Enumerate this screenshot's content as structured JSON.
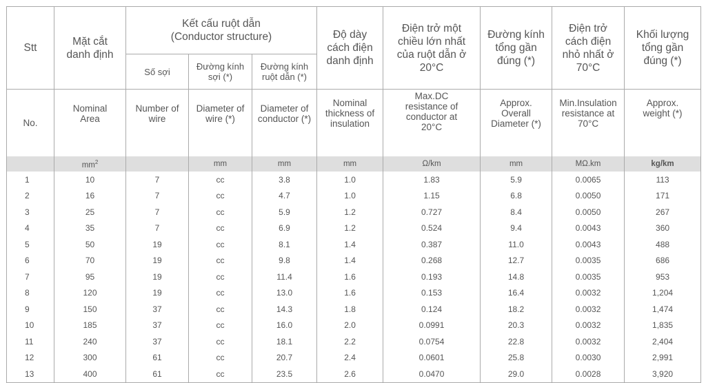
{
  "header_vi": {
    "stt": "Stt",
    "area": "Mặt cắt danh định",
    "structure": "Kết cấu ruột dẫn",
    "structure_en": "(Conductor structure)",
    "num_wire": "Số sợi",
    "dia_wire": "Đường kính sợi (*)",
    "dia_conductor": "Đường kính ruột dẫn (*)",
    "insulation": "Độ dày cách điện danh định",
    "dc_resistance": "Điện trở một chiều lớn nhất của ruột dẫn ở 20°C",
    "overall_dia": "Đường kính tổng gần đúng (*)",
    "insulation_res": "Điện trở cách điện nhỏ nhất ở 70°C",
    "weight": "Khối lượng tổng gần đúng (*)"
  },
  "header_en": [
    "No.",
    "Nominal Area",
    "Number of wire",
    "Diameter of wire (*)",
    "Diameter of conductor (*)",
    "Nominal thickness of insulation",
    "Max.DC resistance of conductor at 20°C",
    "Approx. Overall Diameter (*)",
    "Min.Insulation resistance at 70°C",
    "Approx. weight (*)"
  ],
  "units": [
    "",
    "mm",
    "",
    "mm",
    "mm",
    "mm",
    "Ω/km",
    "mm",
    "MΩ.km",
    "kg/km"
  ],
  "area_unit_sup": "2",
  "rows": [
    [
      "1",
      "10",
      "7",
      "cc",
      "3.8",
      "1.0",
      "1.83",
      "5.9",
      "0.0065",
      "113"
    ],
    [
      "2",
      "16",
      "7",
      "cc",
      "4.7",
      "1.0",
      "1.15",
      "6.8",
      "0.0050",
      "171"
    ],
    [
      "3",
      "25",
      "7",
      "cc",
      "5.9",
      "1.2",
      "0.727",
      "8.4",
      "0.0050",
      "267"
    ],
    [
      "4",
      "35",
      "7",
      "cc",
      "6.9",
      "1.2",
      "0.524",
      "9.4",
      "0.0043",
      "360"
    ],
    [
      "5",
      "50",
      "19",
      "cc",
      "8.1",
      "1.4",
      "0.387",
      "11.0",
      "0.0043",
      "488"
    ],
    [
      "6",
      "70",
      "19",
      "cc",
      "9.8",
      "1.4",
      "0.268",
      "12.7",
      "0.0035",
      "686"
    ],
    [
      "7",
      "95",
      "19",
      "cc",
      "11.4",
      "1.6",
      "0.193",
      "14.8",
      "0.0035",
      "953"
    ],
    [
      "8",
      "120",
      "19",
      "cc",
      "13.0",
      "1.6",
      "0.153",
      "16.4",
      "0.0032",
      "1,204"
    ],
    [
      "9",
      "150",
      "37",
      "cc",
      "14.3",
      "1.8",
      "0.124",
      "18.2",
      "0.0032",
      "1,474"
    ],
    [
      "10",
      "185",
      "37",
      "cc",
      "16.0",
      "2.0",
      "0.0991",
      "20.3",
      "0.0032",
      "1,835"
    ],
    [
      "11",
      "240",
      "37",
      "cc",
      "18.1",
      "2.2",
      "0.0754",
      "22.8",
      "0.0032",
      "2,404"
    ],
    [
      "12",
      "300",
      "61",
      "cc",
      "20.7",
      "2.4",
      "0.0601",
      "25.8",
      "0.0030",
      "2,991"
    ],
    [
      "13",
      "400",
      "61",
      "cc",
      "23.5",
      "2.6",
      "0.0470",
      "29.0",
      "0.0028",
      "3,920"
    ]
  ]
}
